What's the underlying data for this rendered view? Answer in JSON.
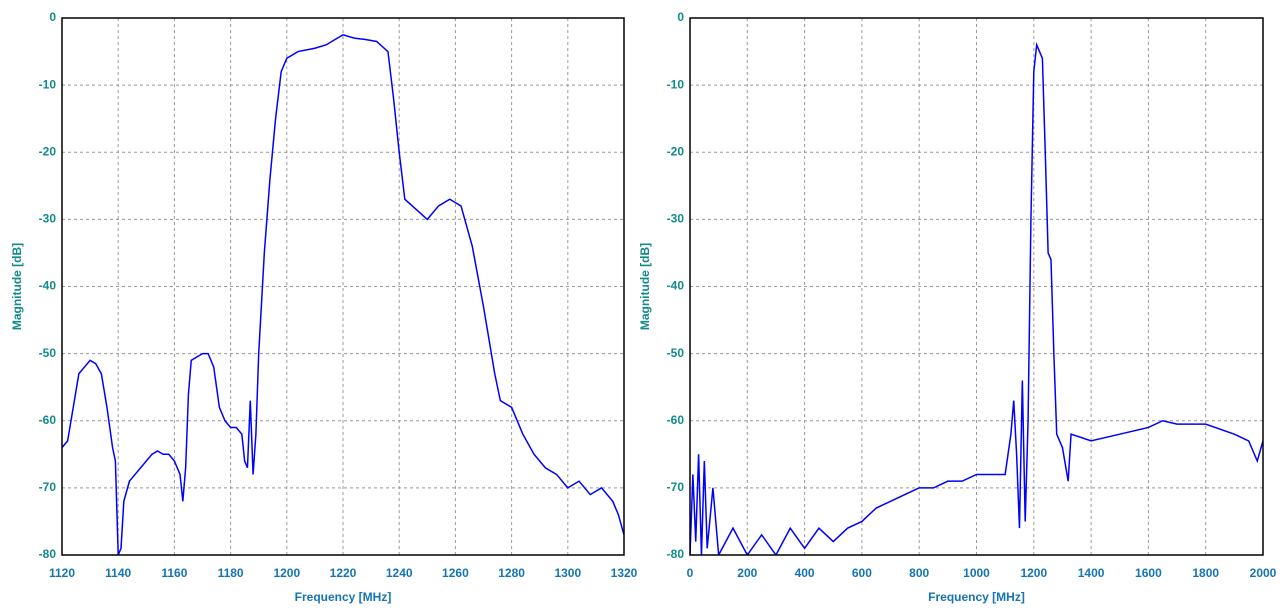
{
  "chart_data": [
    {
      "type": "line",
      "xlabel": "Frequency [MHz]",
      "ylabel": "Magnitude [dB]",
      "color": "#0000ff",
      "grid": true,
      "xlim": [
        1120,
        1320
      ],
      "xticks": [
        1120,
        1140,
        1160,
        1180,
        1200,
        1220,
        1240,
        1260,
        1280,
        1300,
        1320
      ],
      "ylim": [
        -80,
        0
      ],
      "yticks": [
        -80,
        -70,
        -60,
        -50,
        -40,
        -30,
        -20,
        -10,
        0
      ],
      "x": [
        1120,
        1122,
        1124,
        1126,
        1128,
        1130,
        1132,
        1134,
        1136,
        1138,
        1139,
        1140,
        1141,
        1142,
        1144,
        1146,
        1148,
        1150,
        1152,
        1154,
        1156,
        1158,
        1160,
        1162,
        1163,
        1164,
        1165,
        1166,
        1168,
        1170,
        1172,
        1174,
        1176,
        1178,
        1180,
        1182,
        1184,
        1185,
        1186,
        1187,
        1188,
        1189,
        1190,
        1192,
        1194,
        1196,
        1198,
        1200,
        1204,
        1210,
        1214,
        1218,
        1220,
        1224,
        1228,
        1232,
        1236,
        1238,
        1240,
        1242,
        1246,
        1250,
        1254,
        1258,
        1262,
        1266,
        1270,
        1274,
        1276,
        1280,
        1284,
        1288,
        1292,
        1296,
        1300,
        1304,
        1308,
        1312,
        1316,
        1318,
        1320
      ],
      "values": [
        -64,
        -63,
        -58,
        -53,
        -52,
        -51,
        -51.5,
        -53,
        -58,
        -64,
        -66,
        -80,
        -79,
        -72,
        -69,
        -68,
        -67,
        -66,
        -65,
        -64.5,
        -65,
        -65,
        -66,
        -68,
        -72,
        -67,
        -56,
        -51,
        -50.5,
        -50,
        -50,
        -52,
        -58,
        -60,
        -61,
        -61,
        -62,
        -66,
        -67,
        -57,
        -68,
        -62,
        -50,
        -35,
        -24,
        -15,
        -8,
        -6,
        -5,
        -4.5,
        -4,
        -3,
        -2.5,
        -3,
        -3.2,
        -3.5,
        -5,
        -12,
        -20,
        -27,
        -28.5,
        -30,
        -28,
        -27,
        -28,
        -34,
        -43,
        -53,
        -57,
        -58,
        -62,
        -65,
        -67,
        -68,
        -70,
        -69,
        -71,
        -70,
        -72,
        -74,
        -77
      ]
    },
    {
      "type": "line",
      "xlabel": "Frequency [MHz]",
      "ylabel": "Magnitude [dB]",
      "color": "#0000ff",
      "grid": true,
      "xlim": [
        0,
        2000
      ],
      "xticks": [
        0,
        200,
        400,
        600,
        800,
        1000,
        1200,
        1400,
        1600,
        1800,
        2000
      ],
      "ylim": [
        -80,
        0
      ],
      "yticks": [
        -80,
        -70,
        -60,
        -50,
        -40,
        -30,
        -20,
        -10,
        0
      ],
      "x": [
        0,
        10,
        20,
        30,
        40,
        50,
        60,
        80,
        100,
        150,
        200,
        250,
        300,
        350,
        400,
        450,
        500,
        550,
        600,
        650,
        700,
        750,
        800,
        850,
        900,
        950,
        1000,
        1050,
        1100,
        1120,
        1130,
        1140,
        1150,
        1160,
        1170,
        1180,
        1190,
        1200,
        1210,
        1220,
        1230,
        1240,
        1250,
        1260,
        1270,
        1280,
        1300,
        1320,
        1330,
        1400,
        1500,
        1600,
        1650,
        1700,
        1800,
        1900,
        1950,
        1980,
        2000
      ],
      "values": [
        -80,
        -68,
        -78,
        -65,
        -80,
        -66,
        -79,
        -70,
        -80,
        -76,
        -80,
        -77,
        -80,
        -76,
        -79,
        -76,
        -78,
        -76,
        -75,
        -73,
        -72,
        -71,
        -70,
        -70,
        -69,
        -69,
        -68,
        -68,
        -68,
        -62,
        -57,
        -65,
        -76,
        -54,
        -75,
        -60,
        -30,
        -8,
        -4,
        -5,
        -6,
        -20,
        -35,
        -36,
        -50,
        -62,
        -64,
        -69,
        -62,
        -63,
        -62,
        -61,
        -60,
        -60.5,
        -60.5,
        -62,
        -63,
        -66,
        -63
      ]
    }
  ]
}
